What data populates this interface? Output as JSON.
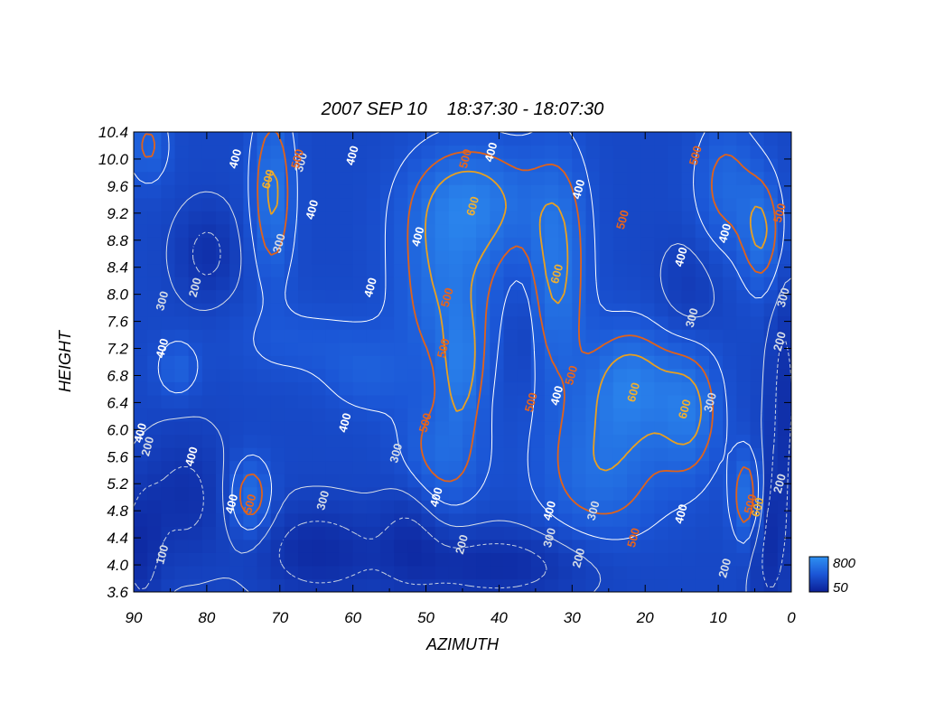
{
  "chart_data": {
    "type": "heatmap",
    "title": "2007 SEP 10    18:37:30 - 18:07:30",
    "xlabel": "AZIMUTH",
    "ylabel": "HEIGHT",
    "xlim": [
      90,
      0
    ],
    "ylim": [
      3.6,
      10.4
    ],
    "x_ticks": [
      "90",
      "80",
      "70",
      "60",
      "50",
      "40",
      "30",
      "20",
      "10",
      "0"
    ],
    "y_ticks": [
      "3.6",
      "4.0",
      "4.4",
      "4.8",
      "5.2",
      "5.6",
      "6.0",
      "6.4",
      "6.8",
      "7.2",
      "7.6",
      "8.0",
      "8.4",
      "8.8",
      "9.2",
      "9.6",
      "10.0",
      "10.4"
    ],
    "colorbar": {
      "min_label": "50",
      "max_label": "800",
      "min": 50,
      "max": 800
    },
    "contour_levels": [
      100,
      200,
      300,
      400,
      500,
      600
    ],
    "contour_colors": {
      "100": "#cfd8e6",
      "200": "#c8d2e2",
      "300": "#d8dee8",
      "400": "#ffffff",
      "500": "#e0621a",
      "600": "#e8a020"
    },
    "features": [
      {
        "x": 47,
        "y": 8.2,
        "value": 600,
        "sx": 5,
        "sy": 1.0
      },
      {
        "x": 32,
        "y": 8.4,
        "value": 620,
        "sx": 3,
        "sy": 1.2
      },
      {
        "x": 71,
        "y": 9.5,
        "value": 620,
        "sx": 2,
        "sy": 0.9
      },
      {
        "x": 43,
        "y": 9.4,
        "value": 600,
        "sx": 6,
        "sy": 0.6
      },
      {
        "x": 22,
        "y": 6.7,
        "value": 640,
        "sx": 4,
        "sy": 0.6
      },
      {
        "x": 14,
        "y": 6.3,
        "value": 620,
        "sx": 3,
        "sy": 0.7
      },
      {
        "x": 26,
        "y": 5.4,
        "value": 580,
        "sx": 6,
        "sy": 0.8
      },
      {
        "x": 48,
        "y": 5.6,
        "value": 560,
        "sx": 4,
        "sy": 0.6
      },
      {
        "x": 45,
        "y": 6.9,
        "value": 560,
        "sx": 2,
        "sy": 0.6
      },
      {
        "x": 74,
        "y": 5.0,
        "value": 600,
        "sx": 2,
        "sy": 0.4
      },
      {
        "x": 6,
        "y": 5.0,
        "value": 620,
        "sx": 1.5,
        "sy": 0.5
      },
      {
        "x": 4,
        "y": 8.9,
        "value": 600,
        "sx": 2,
        "sy": 0.6
      },
      {
        "x": 9,
        "y": 9.6,
        "value": 540,
        "sx": 3,
        "sy": 0.7
      },
      {
        "x": 88,
        "y": 10.2,
        "value": 520,
        "sx": 2,
        "sy": 0.4
      },
      {
        "x": 84,
        "y": 6.9,
        "value": 500,
        "sx": 2,
        "sy": 0.3
      },
      {
        "x": 58,
        "y": 6.8,
        "value": 460,
        "sx": 4,
        "sy": 0.4
      },
      {
        "x": 67,
        "y": 7.3,
        "value": 430,
        "sx": 7,
        "sy": 0.4
      },
      {
        "x": 80,
        "y": 8.6,
        "value": 170,
        "sx": 3,
        "sy": 0.5
      },
      {
        "x": 83,
        "y": 5.0,
        "value": 170,
        "sx": 4,
        "sy": 0.7
      },
      {
        "x": 65,
        "y": 4.2,
        "value": 140,
        "sx": 6,
        "sy": 0.5
      },
      {
        "x": 40,
        "y": 4.0,
        "value": 140,
        "sx": 10,
        "sy": 0.4
      },
      {
        "x": 52,
        "y": 4.6,
        "value": 190,
        "sx": 3,
        "sy": 0.6
      },
      {
        "x": 37,
        "y": 7.5,
        "value": 220,
        "sx": 1.5,
        "sy": 0.6
      },
      {
        "x": 14,
        "y": 8.0,
        "value": 230,
        "sx": 3,
        "sy": 0.6
      },
      {
        "x": 1,
        "y": 6.6,
        "value": 170,
        "sx": 1.5,
        "sy": 1.2
      },
      {
        "x": 3,
        "y": 4.4,
        "value": 150,
        "sx": 2,
        "sy": 0.9
      },
      {
        "x": 89,
        "y": 4.2,
        "value": 160,
        "sx": 2,
        "sy": 0.7
      }
    ],
    "contour_labels": [
      {
        "text": "100",
        "x": 86,
        "y": 4.15
      },
      {
        "text": "200",
        "x": 81.5,
        "y": 8.1
      },
      {
        "text": "200",
        "x": 88,
        "y": 5.75
      },
      {
        "text": "200",
        "x": 45,
        "y": 4.3
      },
      {
        "text": "200",
        "x": 29,
        "y": 4.1
      },
      {
        "text": "200",
        "x": 9,
        "y": 3.95
      },
      {
        "text": "200",
        "x": 1.5,
        "y": 7.3
      },
      {
        "text": "200",
        "x": 1.5,
        "y": 5.2
      },
      {
        "text": "300",
        "x": 67,
        "y": 9.95
      },
      {
        "text": "300",
        "x": 70,
        "y": 8.75
      },
      {
        "text": "300",
        "x": 64,
        "y": 4.95
      },
      {
        "text": "300",
        "x": 27,
        "y": 4.8
      },
      {
        "text": "300",
        "x": 13.5,
        "y": 7.65
      },
      {
        "text": "300",
        "x": 11,
        "y": 6.4
      },
      {
        "text": "300",
        "x": 1,
        "y": 7.95
      },
      {
        "text": "300",
        "x": 86,
        "y": 7.9
      },
      {
        "text": "300",
        "x": 33,
        "y": 4.4
      },
      {
        "text": "300",
        "x": 54,
        "y": 5.65
      },
      {
        "text": "400",
        "x": 76,
        "y": 10.0
      },
      {
        "text": "400",
        "x": 65.5,
        "y": 9.25
      },
      {
        "text": "400",
        "x": 60,
        "y": 10.05
      },
      {
        "text": "400",
        "x": 41,
        "y": 10.1
      },
      {
        "text": "400",
        "x": 29,
        "y": 9.55
      },
      {
        "text": "400",
        "x": 15,
        "y": 8.55
      },
      {
        "text": "400",
        "x": 9,
        "y": 8.9
      },
      {
        "text": "400",
        "x": 57.5,
        "y": 8.1
      },
      {
        "text": "400",
        "x": 51,
        "y": 8.85
      },
      {
        "text": "400",
        "x": 86,
        "y": 7.2
      },
      {
        "text": "400",
        "x": 61,
        "y": 6.1
      },
      {
        "text": "400",
        "x": 82,
        "y": 5.6
      },
      {
        "text": "400",
        "x": 48.5,
        "y": 5.0
      },
      {
        "text": "400",
        "x": 32,
        "y": 6.5
      },
      {
        "text": "400",
        "x": 33,
        "y": 4.8
      },
      {
        "text": "400",
        "x": 15,
        "y": 4.75
      },
      {
        "text": "400",
        "x": 76.5,
        "y": 4.9
      },
      {
        "text": "400",
        "x": 89,
        "y": 5.95
      },
      {
        "text": "500",
        "x": 67.5,
        "y": 10.0
      },
      {
        "text": "500",
        "x": 44.5,
        "y": 10.0
      },
      {
        "text": "500",
        "x": 13,
        "y": 10.05
      },
      {
        "text": "500",
        "x": 23,
        "y": 9.1
      },
      {
        "text": "500",
        "x": 47,
        "y": 7.95
      },
      {
        "text": "500",
        "x": 47.5,
        "y": 7.2
      },
      {
        "text": "500",
        "x": 50,
        "y": 6.1
      },
      {
        "text": "500",
        "x": 35.5,
        "y": 6.4
      },
      {
        "text": "500",
        "x": 30,
        "y": 6.8
      },
      {
        "text": "500",
        "x": 21.5,
        "y": 4.4
      },
      {
        "text": "500",
        "x": 1.5,
        "y": 9.2
      },
      {
        "text": "500",
        "x": 5.5,
        "y": 4.9
      },
      {
        "text": "500",
        "x": 74,
        "y": 4.9
      },
      {
        "text": "600",
        "x": 71.5,
        "y": 9.7
      },
      {
        "text": "600",
        "x": 43.5,
        "y": 9.3
      },
      {
        "text": "600",
        "x": 32,
        "y": 8.3
      },
      {
        "text": "600",
        "x": 21.5,
        "y": 6.55
      },
      {
        "text": "600",
        "x": 14.5,
        "y": 6.3
      },
      {
        "text": "600",
        "x": 4.5,
        "y": 4.85
      }
    ]
  }
}
